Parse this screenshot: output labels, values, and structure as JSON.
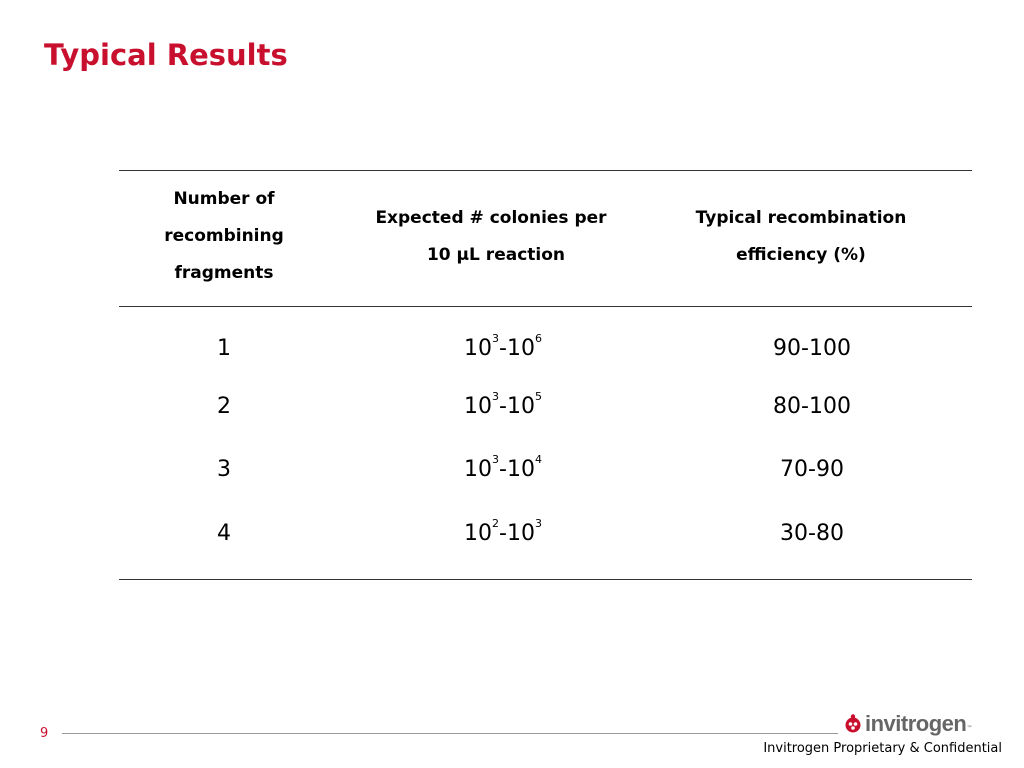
{
  "slide": {
    "title": "Typical Results",
    "page_number": "9",
    "footer": "Invitrogen Proprietary & Confidential",
    "logo_text": "invitrogen",
    "logo_tm": "™",
    "accent_color": "#c8102e"
  },
  "table": {
    "headers": [
      [
        "Number of",
        "recombining",
        "fragments"
      ],
      [
        "Expected # colonies per",
        "10 μL reaction"
      ],
      [
        "Typical recombination",
        "efficiency (%)"
      ]
    ],
    "rows": [
      {
        "fragments": "1",
        "colonies_base1": "10",
        "colonies_exp1": "3",
        "colonies_sep": "-",
        "colonies_base2": "10",
        "colonies_exp2": "6",
        "efficiency": "90-100"
      },
      {
        "fragments": "2",
        "colonies_base1": "10",
        "colonies_exp1": "3",
        "colonies_sep": "-",
        "colonies_base2": "10",
        "colonies_exp2": "5",
        "efficiency": "80-100"
      },
      {
        "fragments": "3",
        "colonies_base1": "10",
        "colonies_exp1": "3",
        "colonies_sep": "-",
        "colonies_base2": "10",
        "colonies_exp2": "4",
        "efficiency": "70-90"
      },
      {
        "fragments": "4",
        "colonies_base1": "10",
        "colonies_exp1": "2",
        "colonies_sep": "-",
        "colonies_base2": "10",
        "colonies_exp2": "3",
        "efficiency": "30-80"
      }
    ]
  }
}
